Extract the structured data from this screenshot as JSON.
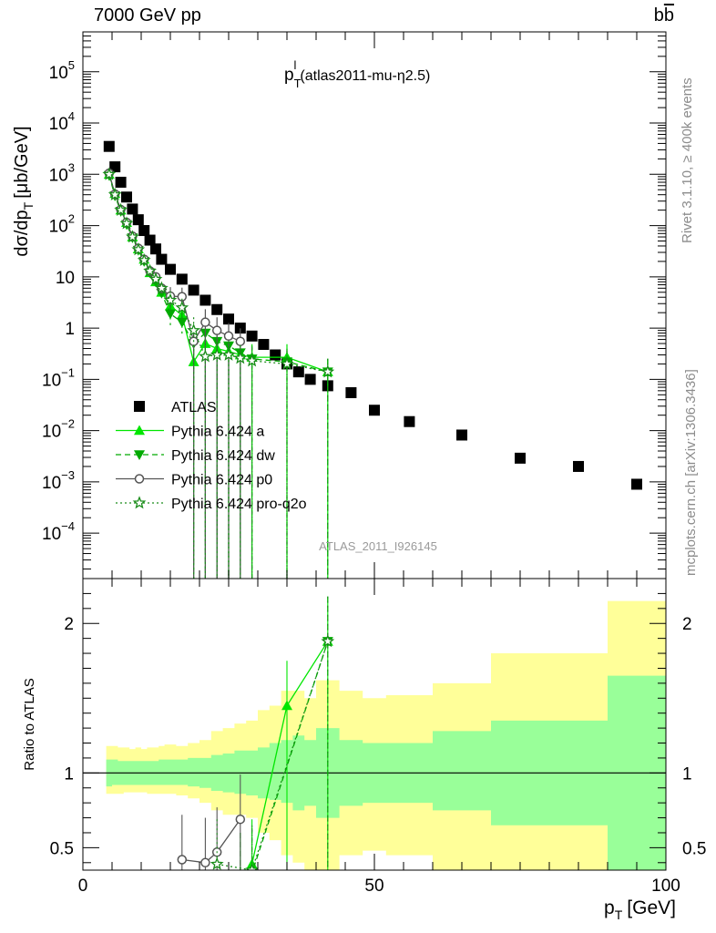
{
  "header": {
    "left": "7000 GeV pp",
    "right_base": "b",
    "right_bar": "b"
  },
  "side_text": {
    "rivet": "Rivet 3.1.10, ≥ 400k events",
    "mcplots": "mcplots.cern.ch [arXiv:1306.3436]"
  },
  "chart_data": [
    {
      "type": "scatter",
      "title": "p_T^l (atlas2011-mu-η2.5)",
      "title_main": "p",
      "title_sub": "T",
      "title_sup": "l",
      "title_rest": "(atlas2011-mu-η2.5)",
      "ylabel": "dσ/dp_T [μb/GeV]",
      "ylabel_pre": "dσ/dp",
      "ylabel_sub": "T",
      "ylabel_post": "[μb/GeV]",
      "xlabel": "p_T [GeV]",
      "xlabel_main": "p",
      "xlabel_sub": "T",
      "xlabel_post": "[GeV]",
      "xlim": [
        0,
        100
      ],
      "ylim": [
        1.3e-05,
        600000
      ],
      "log_y": true,
      "ytick_labels": [
        {
          "v": 100000,
          "base": "10",
          "exp": "5"
        },
        {
          "v": 10000,
          "base": "10",
          "exp": "4"
        },
        {
          "v": 1000,
          "base": "10",
          "exp": "3"
        },
        {
          "v": 100,
          "base": "10",
          "exp": "2"
        },
        {
          "v": 10,
          "base": "10",
          "exp": ""
        },
        {
          "v": 1,
          "base": "1",
          "exp": ""
        },
        {
          "v": 0.1,
          "base": "10",
          "exp": "−1"
        },
        {
          "v": 0.01,
          "base": "10",
          "exp": "−2"
        },
        {
          "v": 0.001,
          "base": "10",
          "exp": "−3"
        },
        {
          "v": 0.0001,
          "base": "10",
          "exp": "−4"
        }
      ],
      "watermark": "ATLAS_2011_I926145",
      "legend_position": "lower-left",
      "series": [
        {
          "name": "ATLAS",
          "color": "#000000",
          "marker": "square",
          "x": [
            4.5,
            5.5,
            6.5,
            7.5,
            8.5,
            9.5,
            10.5,
            11.5,
            12.5,
            13.5,
            15,
            17,
            19,
            21,
            23,
            25,
            27,
            29,
            31,
            33,
            35,
            37,
            39,
            42,
            46,
            50,
            56,
            65,
            75,
            85,
            95
          ],
          "y": [
            3500,
            1400,
            700,
            360,
            210,
            130,
            80,
            52,
            35,
            22,
            14,
            9,
            5.5,
            3.5,
            2.3,
            1.5,
            1.0,
            0.7,
            0.48,
            0.3,
            0.2,
            0.14,
            0.1,
            0.075,
            0.055,
            0.025,
            0.015,
            0.0082,
            0.0029,
            0.002,
            0.0009
          ]
        },
        {
          "name": "Pythia 6.424 a",
          "color": "#00e600",
          "marker": "triangle-up",
          "line": "solid",
          "x": [
            4.5,
            5.5,
            6.5,
            7.5,
            8.5,
            9.5,
            10.5,
            11.5,
            12.5,
            13.5,
            15,
            17,
            19,
            21,
            23,
            25,
            27,
            29,
            35,
            42
          ],
          "y": [
            1000,
            420,
            200,
            115,
            60,
            35,
            22,
            12,
            8,
            5,
            2.7,
            1.8,
            0.22,
            0.5,
            0.4,
            0.35,
            0.3,
            0.27,
            0.27,
            0.14
          ]
        },
        {
          "name": "Pythia 6.424 dw",
          "color": "#00aa00",
          "marker": "triangle-down",
          "line": "dashed",
          "x": [
            4.5,
            5.5,
            6.5,
            7.5,
            8.5,
            9.5,
            10.5,
            11.5,
            12.5,
            13.5,
            15,
            17,
            19,
            21,
            23,
            25,
            27,
            29,
            35,
            42
          ],
          "y": [
            950,
            380,
            190,
            105,
            58,
            33,
            20,
            12,
            8,
            4.8,
            1.9,
            1.3,
            0.5,
            0.8,
            0.55,
            0.45,
            0.33,
            0.25,
            0.22,
            0.14
          ]
        },
        {
          "name": "Pythia 6.424 p0",
          "color": "#555555",
          "marker": "circle-open",
          "line": "solid",
          "x": [
            4.5,
            5.5,
            6.5,
            7.5,
            8.5,
            9.5,
            10.5,
            11.5,
            12.5,
            13.5,
            15,
            17,
            19,
            21,
            23,
            25,
            27
          ],
          "y": [
            1050,
            410,
            205,
            115,
            62,
            36,
            22,
            13,
            10,
            6,
            4.2,
            4.1,
            0.55,
            1.3,
            0.9,
            0.7,
            0.55
          ]
        },
        {
          "name": "Pythia 6.424 pro-q2o",
          "color": "#1a8c1a",
          "marker": "star-open",
          "line": "dotted",
          "x": [
            4.5,
            5.5,
            6.5,
            7.5,
            8.5,
            9.5,
            10.5,
            11.5,
            12.5,
            13.5,
            15,
            17,
            19,
            21,
            23,
            25,
            27,
            29,
            35,
            42
          ],
          "y": [
            1000,
            400,
            200,
            110,
            60,
            34,
            21,
            13,
            9,
            6,
            3.5,
            2.5,
            0.9,
            0.28,
            0.3,
            0.3,
            0.26,
            0.23,
            0.2,
            0.14
          ]
        }
      ]
    },
    {
      "type": "line",
      "ylabel": "Ratio to ATLAS",
      "xlim": [
        0,
        100
      ],
      "ylim": [
        0.35,
        2.3
      ],
      "ytick_labels": [
        "0.5",
        "1",
        "2"
      ],
      "yticks": [
        0.5,
        1,
        2
      ],
      "xticks": [
        0,
        50,
        100
      ],
      "xtick_labels": [
        "0",
        "50",
        "100"
      ],
      "reference_line": 1,
      "band_edges": [
        4,
        5,
        6,
        7,
        8,
        9,
        10,
        11,
        12,
        13,
        14,
        16,
        18,
        20,
        22,
        24,
        26,
        28,
        30,
        32,
        34,
        36,
        38,
        40,
        44,
        48,
        52,
        60,
        70,
        90,
        100
      ],
      "band_inner": [
        [
          0.91,
          1.09
        ],
        [
          0.92,
          1.09
        ],
        [
          0.92,
          1.08
        ],
        [
          0.92,
          1.08
        ],
        [
          0.92,
          1.08
        ],
        [
          0.92,
          1.08
        ],
        [
          0.92,
          1.08
        ],
        [
          0.92,
          1.08
        ],
        [
          0.92,
          1.08
        ],
        [
          0.92,
          1.09
        ],
        [
          0.92,
          1.09
        ],
        [
          0.92,
          1.09
        ],
        [
          0.91,
          1.1
        ],
        [
          0.9,
          1.1
        ],
        [
          0.88,
          1.12
        ],
        [
          0.87,
          1.13
        ],
        [
          0.86,
          1.15
        ],
        [
          0.85,
          1.15
        ],
        [
          0.83,
          1.17
        ],
        [
          0.82,
          1.2
        ],
        [
          0.8,
          1.22
        ],
        [
          0.75,
          1.25
        ],
        [
          0.78,
          1.22
        ],
        [
          0.7,
          1.3
        ],
        [
          0.78,
          1.22
        ],
        [
          0.8,
          1.2
        ],
        [
          0.8,
          1.2
        ],
        [
          0.75,
          1.28
        ],
        [
          0.65,
          1.35
        ],
        [
          0.35,
          1.65
        ]
      ],
      "band_outer": [
        [
          0.86,
          1.18
        ],
        [
          0.86,
          1.18
        ],
        [
          0.86,
          1.17
        ],
        [
          0.87,
          1.17
        ],
        [
          0.87,
          1.16
        ],
        [
          0.87,
          1.17
        ],
        [
          0.87,
          1.16
        ],
        [
          0.86,
          1.17
        ],
        [
          0.86,
          1.17
        ],
        [
          0.86,
          1.18
        ],
        [
          0.86,
          1.19
        ],
        [
          0.85,
          1.18
        ],
        [
          0.83,
          1.2
        ],
        [
          0.8,
          1.22
        ],
        [
          0.75,
          1.28
        ],
        [
          0.72,
          1.3
        ],
        [
          0.72,
          1.33
        ],
        [
          0.7,
          1.35
        ],
        [
          0.6,
          1.42
        ],
        [
          0.55,
          1.45
        ],
        [
          0.45,
          1.55
        ],
        [
          0.4,
          1.55
        ],
        [
          0.35,
          1.5
        ],
        [
          0.35,
          1.62
        ],
        [
          0.45,
          1.55
        ],
        [
          0.48,
          1.5
        ],
        [
          0.45,
          1.52
        ],
        [
          0.35,
          1.6
        ],
        [
          0.35,
          1.8
        ],
        [
          0.35,
          2.15
        ]
      ],
      "series": [
        {
          "name": "Pythia 6.424 a",
          "x": [
            27,
            29,
            35,
            42
          ],
          "y": [
            0.3,
            0.39,
            1.45,
            1.88
          ]
        },
        {
          "name": "Pythia 6.424 dw",
          "x": [
            27,
            29,
            42
          ],
          "y": [
            0.3,
            0.33,
            1.88
          ]
        },
        {
          "name": "Pythia 6.424 p0",
          "x": [
            17,
            21,
            23,
            27
          ],
          "y": [
            0.42,
            0.4,
            0.47,
            0.69
          ]
        },
        {
          "name": "Pythia 6.424 pro-q2o",
          "x": [
            23,
            29,
            42
          ],
          "y": [
            0.39,
            0.35,
            1.88
          ]
        }
      ]
    }
  ]
}
